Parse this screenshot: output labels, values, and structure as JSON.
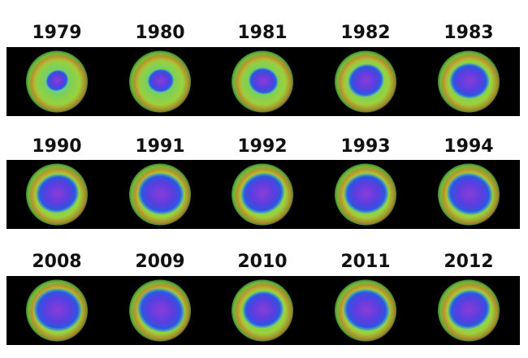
{
  "rows": [
    [
      "1979",
      "1980",
      "1981",
      "1982",
      "1983"
    ],
    [
      "1990",
      "1991",
      "1992",
      "1993",
      "1994"
    ],
    [
      "2008",
      "2009",
      "2010",
      "2011",
      "2012"
    ]
  ]
}
